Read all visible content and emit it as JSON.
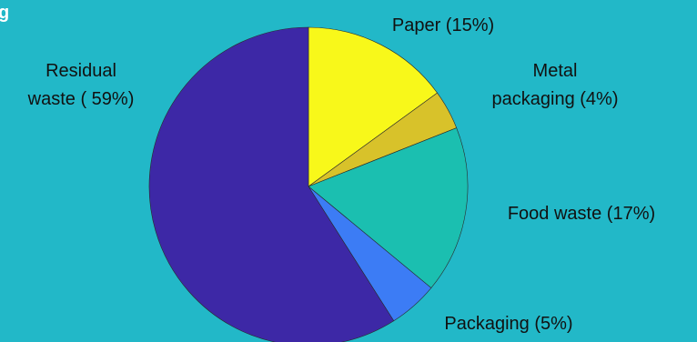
{
  "corner_fragment": "g",
  "chart_data": {
    "type": "pie",
    "start_angle_deg": 0,
    "direction": "clockwise",
    "slices": [
      {
        "label_lines": [
          "Paper (15%)"
        ],
        "value": 15,
        "color": "#f8f81a"
      },
      {
        "label_lines": [
          "Metal",
          "packaging (4%)"
        ],
        "value": 4,
        "color": "#d8c22a"
      },
      {
        "label_lines": [
          "Food waste (17%)"
        ],
        "value": 17,
        "color": "#1bbfb0"
      },
      {
        "label_lines": [
          "Packaging (5%)"
        ],
        "value": 5,
        "color": "#3c7cf5"
      },
      {
        "label_lines": [
          "Residual",
          "waste ( 59%)"
        ],
        "value": 59,
        "color": "#3d28a6"
      }
    ],
    "legend": "none"
  }
}
